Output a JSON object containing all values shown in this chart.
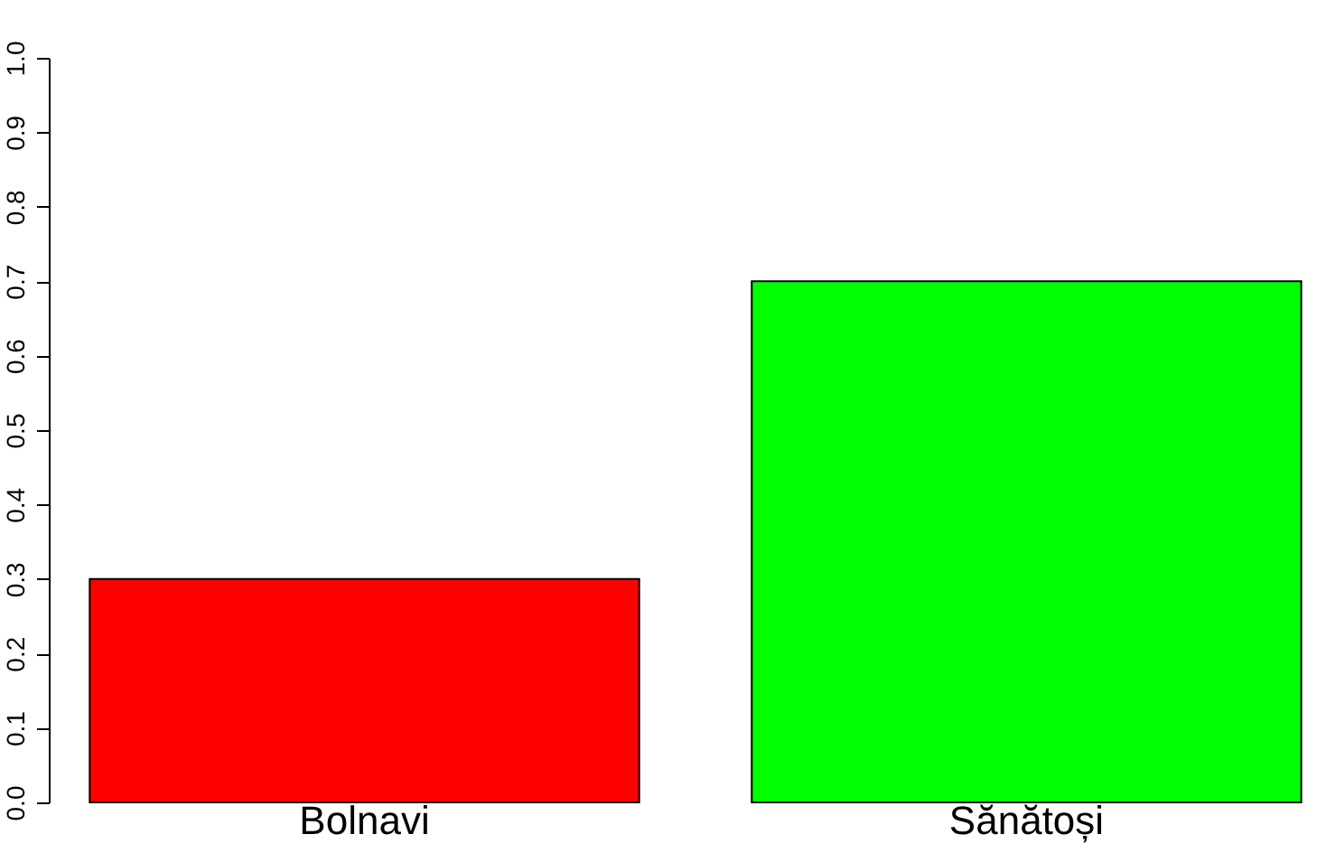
{
  "chart_data": {
    "type": "bar",
    "categories": [
      "Bolnavi",
      "Sănătoși"
    ],
    "values": [
      0.3,
      0.7
    ],
    "colors": [
      "#ff0000",
      "#00ff00"
    ],
    "ylim": [
      0,
      1
    ],
    "yticks": [
      {
        "value": 0,
        "label": "0.0"
      },
      0.1,
      0.2,
      0.3,
      0.4,
      0.5,
      0.6,
      0.7,
      0.8,
      0.9,
      {
        "value": 1,
        "label": "1.0"
      }
    ],
    "grid": false
  }
}
